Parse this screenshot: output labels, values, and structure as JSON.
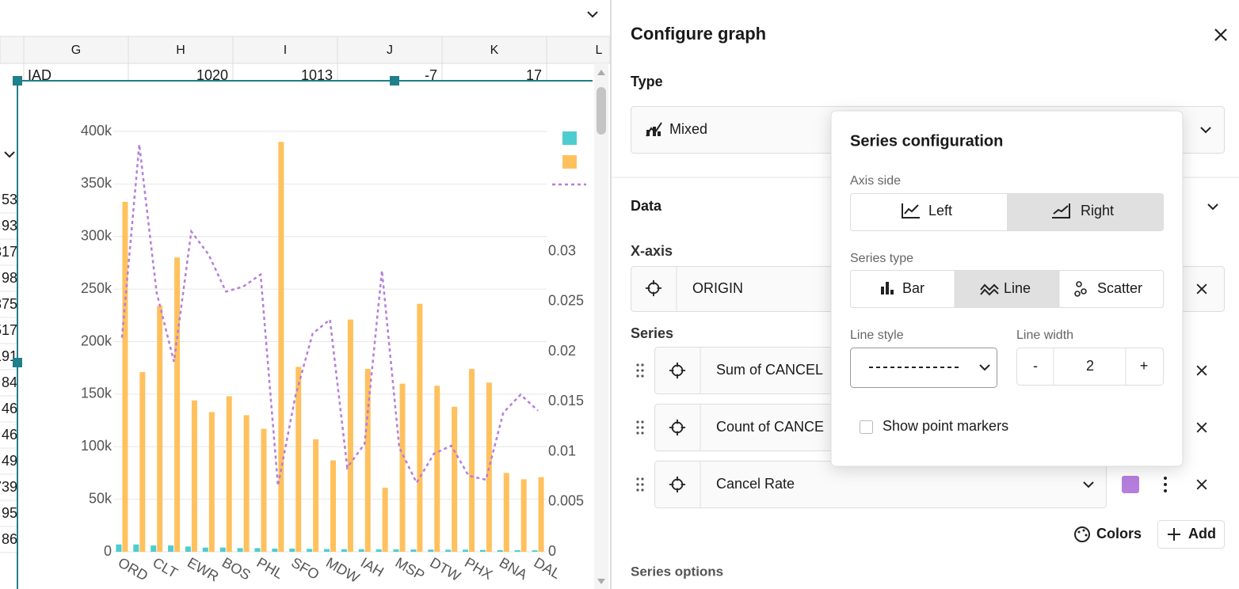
{
  "sheet": {
    "columns": [
      "G",
      "H",
      "I",
      "J",
      "K",
      "L"
    ],
    "row": [
      "IAD",
      "1020",
      "1013",
      "-7",
      "17"
    ],
    "left_cells": [
      "53",
      "93",
      "317",
      "98",
      "375",
      "517",
      "191",
      "84",
      "46",
      "46",
      "49",
      "739",
      "95",
      "86"
    ]
  },
  "chart_data": {
    "type": "mixed",
    "categories": [
      "ORD",
      null,
      "CLT",
      null,
      "EWR",
      null,
      "BOS",
      null,
      "PHL",
      null,
      "SFO",
      null,
      "MDW",
      null,
      "IAH",
      null,
      "MSP",
      null,
      "DTW",
      null,
      "PHX",
      null,
      "BNA",
      null,
      "DAL"
    ],
    "series": [
      {
        "type": "bar",
        "color": "#4ecdd0",
        "values": [
          7000,
          7000,
          6000,
          6000,
          5000,
          4000,
          4000,
          3500,
          3500,
          3000,
          3000,
          2800,
          2600,
          2500,
          2500,
          2300,
          2300,
          2200,
          2100,
          2000,
          2000,
          1800,
          1600,
          1500,
          1400
        ]
      },
      {
        "type": "bar",
        "color": "#ffc15e",
        "values": [
          333000,
          171000,
          234000,
          280000,
          144000,
          133000,
          148000,
          130000,
          117000,
          390000,
          176000,
          107000,
          87000,
          221000,
          174000,
          61000,
          160000,
          236000,
          158000,
          138000,
          174000,
          161000,
          75000,
          69000,
          71000
        ]
      },
      {
        "type": "line",
        "color": "#b57edc",
        "dashed": true,
        "axis": "y2",
        "values": [
          0.0214,
          0.0407,
          0.0259,
          0.019,
          0.032,
          0.0297,
          0.026,
          0.0265,
          0.0277,
          0.0066,
          0.0155,
          0.0218,
          0.0232,
          0.0084,
          0.0108,
          0.0281,
          0.0104,
          0.0069,
          0.0098,
          0.0106,
          0.0076,
          0.0072,
          0.0139,
          0.0157,
          0.0141
        ]
      }
    ],
    "ylim": [
      0,
      400000
    ],
    "yticks": [
      0,
      {
        "value": 50000,
        "label": "50k"
      },
      {
        "value": 100000,
        "label": "100k"
      },
      {
        "value": 150000,
        "label": "150k"
      },
      {
        "value": 200000,
        "label": "200k"
      },
      {
        "value": 250000,
        "label": "250k"
      },
      {
        "value": 300000,
        "label": "300k"
      },
      {
        "value": 350000,
        "label": "350k"
      },
      {
        "value": 400000,
        "label": "400k"
      }
    ],
    "y2lim": [
      0,
      0.042
    ],
    "y2ticks": [
      0,
      0.005,
      0.01,
      0.015,
      0.02,
      0.025,
      0.03
    ],
    "grid": true
  },
  "panel": {
    "title": "Configure graph",
    "type_label": "Type",
    "type_value": "Mixed",
    "data_label": "Data",
    "xaxis_label": "X-axis",
    "xaxis_value": "ORIGIN",
    "series_label": "Series",
    "series": [
      "Sum of CANCEL",
      "Count of CANCE",
      "Cancel Rate"
    ],
    "colors_button": "Colors",
    "add_button": "Add",
    "series_options": "Series options"
  },
  "popup": {
    "title": "Series configuration",
    "axis_side_label": "Axis side",
    "axis_left": "Left",
    "axis_right": "Right",
    "series_type_label": "Series type",
    "type_bar": "Bar",
    "type_line": "Line",
    "type_scatter": "Scatter",
    "line_style_label": "Line style",
    "line_width_label": "Line width",
    "minus": "-",
    "line_width": "2",
    "plus": "+",
    "show_markers": "Show point markers"
  }
}
